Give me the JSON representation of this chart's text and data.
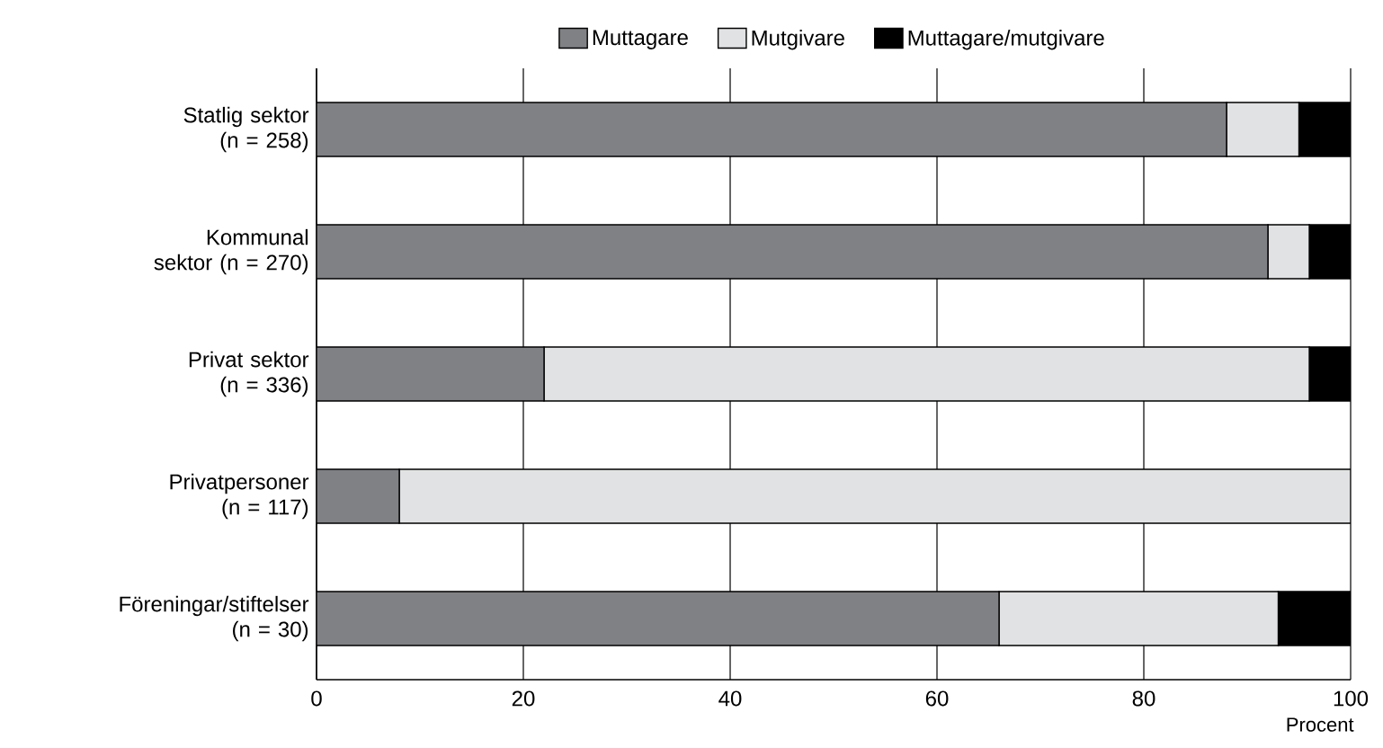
{
  "chart_data": {
    "type": "bar",
    "orientation": "horizontal",
    "stacked": true,
    "xlabel": "Procent",
    "categories": [
      "Statlig sektor (n = 258)",
      "Kommunal sektor (n = 270)",
      "Privat sektor (n = 336)",
      "Privatpersoner (n = 117)",
      "Föreningar/stiftelser (n = 30)"
    ],
    "series": [
      {
        "name": "Muttagare",
        "color": "#808184",
        "values": [
          88,
          92,
          22,
          8,
          66
        ]
      },
      {
        "name": "Mutgivare",
        "color": "#e1e2e3",
        "values": [
          7,
          4,
          74,
          92,
          27
        ]
      },
      {
        "name": "Muttagare/mutgivare",
        "color": "#000000",
        "values": [
          5,
          4,
          4,
          0,
          7
        ]
      }
    ],
    "xlim": [
      0,
      100
    ],
    "xticks": [
      0,
      20,
      40,
      60,
      80,
      100
    ],
    "grid": "x",
    "legend": "top"
  }
}
